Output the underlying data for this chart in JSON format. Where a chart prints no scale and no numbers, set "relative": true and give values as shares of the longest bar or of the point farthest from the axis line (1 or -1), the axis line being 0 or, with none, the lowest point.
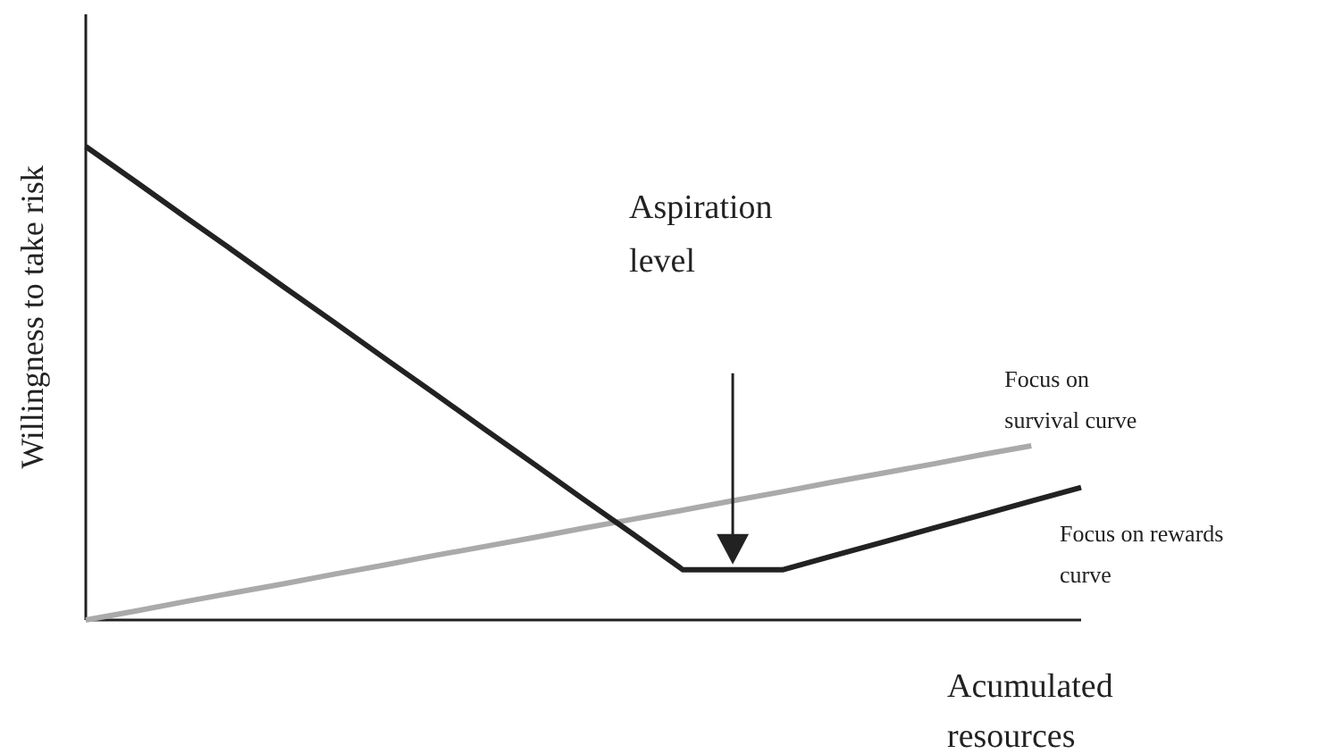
{
  "chart_data": {
    "type": "line",
    "relative": true,
    "xlabel": "Acumulated resources",
    "ylabel": "Willingness to take risk",
    "marker": "none",
    "line_style": "solid",
    "categories": [
      null,
      null,
      null,
      null,
      null,
      null,
      null,
      null,
      null,
      null,
      null,
      null,
      null,
      null,
      null,
      null,
      null,
      null,
      null,
      null,
      null
    ],
    "series": [
      {
        "name": "Focus on survival curve",
        "color": "#aaaaaa",
        "values": [
          0,
          0.019,
          0.039,
          0.058,
          0.077,
          0.097,
          0.116,
          0.136,
          0.155,
          0.174,
          0.194,
          0.213,
          0.232,
          0.252,
          0.271,
          0.291,
          0.31,
          0.329,
          0.349,
          0.368,
          null
        ]
      },
      {
        "name": "Focus on rewards curve",
        "color": "#222222",
        "values": [
          1,
          0.926,
          0.851,
          0.777,
          0.702,
          0.628,
          0.553,
          0.479,
          0.404,
          0.33,
          0.255,
          0.181,
          0.106,
          0.106,
          0.106,
          0.135,
          0.164,
          0.193,
          0.222,
          0.251,
          0.28
        ]
      }
    ],
    "annotations": [
      "Aspiration level"
    ]
  }
}
